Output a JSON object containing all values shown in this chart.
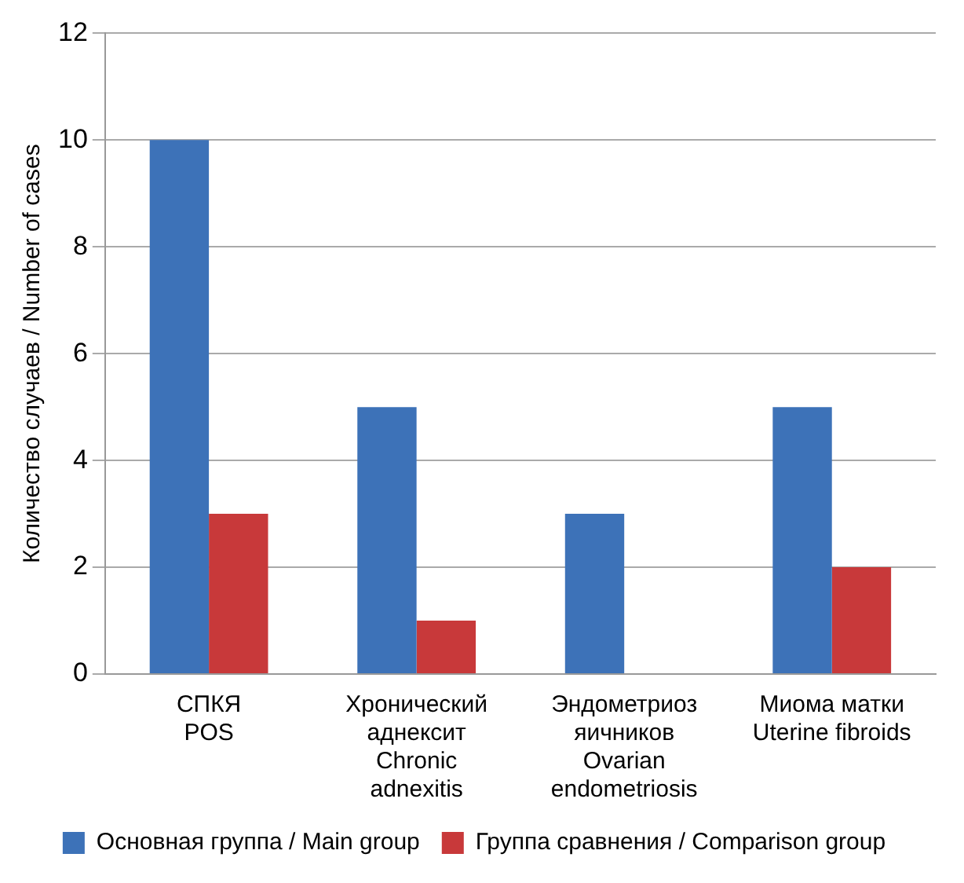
{
  "chart_data": {
    "type": "bar",
    "ylabel": "Количество случаев / Number of cases",
    "categories": [
      "СПКЯ\nPOS",
      "Хронический\nаднексит\nChronic\nadnexitis",
      "Эндометриоз\nяичников\nOvarian\nendometriosis",
      "Миома матки\nUterine fibroids"
    ],
    "series": [
      {
        "name": "Основная группа / Main group",
        "color": "#3d72b8",
        "values": [
          10,
          5,
          3,
          5
        ]
      },
      {
        "name": "Группа сравнения / Comparison group",
        "color": "#c8393a",
        "values": [
          3,
          1,
          0,
          2
        ]
      }
    ],
    "ylim": [
      0,
      12
    ],
    "yticks": [
      0,
      2,
      4,
      6,
      8,
      10,
      12
    ],
    "grid": "y",
    "legend": "bottom"
  }
}
